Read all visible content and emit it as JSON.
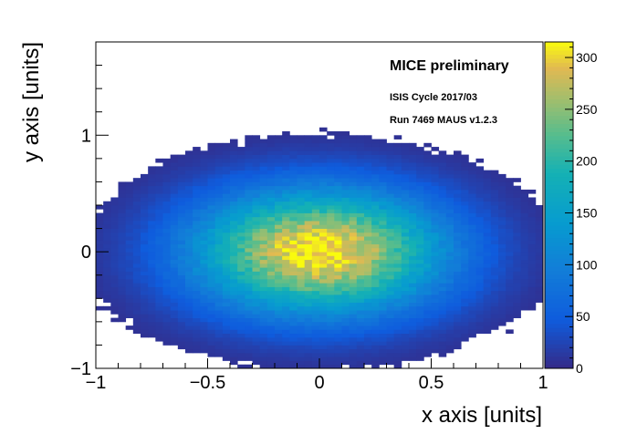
{
  "chart_data": {
    "type": "heatmap",
    "title": "",
    "xlabel": "x axis [units]",
    "ylabel": "y axis [units]",
    "xlim": [
      -1,
      1
    ],
    "ylim": [
      -1,
      1.8
    ],
    "x_ticks": [
      {
        "value": -1,
        "label": "−1"
      },
      {
        "value": -0.5,
        "label": "−0.5"
      },
      {
        "value": 0,
        "label": "0"
      },
      {
        "value": 0.5,
        "label": "0.5"
      },
      {
        "value": 1,
        "label": "1"
      }
    ],
    "y_ticks": [
      {
        "value": -1,
        "label": "−1"
      },
      {
        "value": 0,
        "label": "0"
      },
      {
        "value": 1,
        "label": "1"
      }
    ],
    "bins": {
      "nx": 60,
      "ny": 84
    },
    "distribution": {
      "shape": "2D Gaussian",
      "x_mean": 0,
      "y_mean": 0,
      "x_sigma": 0.3,
      "y_sigma": 0.3,
      "peak_count": 315
    },
    "colorbar": {
      "range": [
        0,
        315
      ],
      "colormap": "parula-like (dark blue → cyan → green → yellow)",
      "ticks": [
        {
          "value": 0,
          "label": "0"
        },
        {
          "value": 50,
          "label": "50"
        },
        {
          "value": 100,
          "label": "100"
        },
        {
          "value": 150,
          "label": "150"
        },
        {
          "value": 200,
          "label": "200"
        },
        {
          "value": 250,
          "label": "250"
        },
        {
          "value": 300,
          "label": "300"
        }
      ]
    },
    "annotations": {
      "title_text": "MICE preliminary",
      "line1": "ISIS Cycle 2017/03",
      "line2": "Run 7469 MAUS v1.2.3"
    },
    "grid": false,
    "legend": "none"
  }
}
